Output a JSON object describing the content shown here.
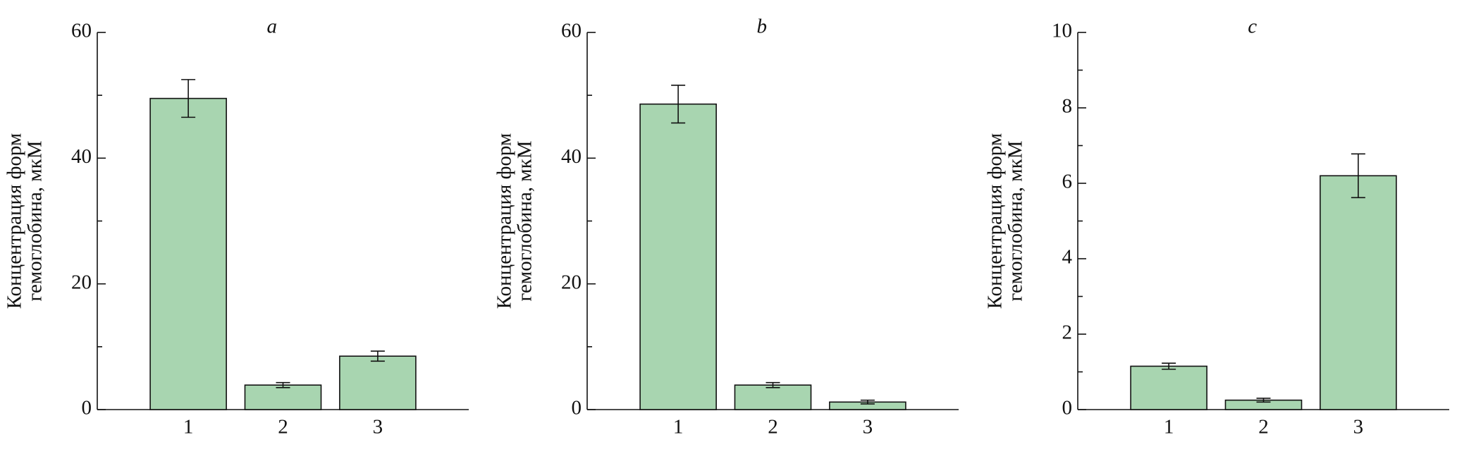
{
  "chart_data": [
    {
      "type": "bar",
      "title": "a",
      "ylabel": [
        "Концентрация форм",
        "гемоглобина, мкМ"
      ],
      "categories": [
        "1",
        "2",
        "3"
      ],
      "values": [
        49.5,
        3.9,
        8.5
      ],
      "errors": [
        3.0,
        0.4,
        0.8
      ],
      "color": "#a8d5b0",
      "ylim": [
        0,
        60
      ],
      "yticks": [
        0,
        20,
        40,
        60
      ],
      "yminorticks": [
        10,
        30,
        50
      ]
    },
    {
      "type": "bar",
      "title": "b",
      "ylabel": [
        "Концентрация форм",
        "гемоглобина, мкМ"
      ],
      "categories": [
        "1",
        "2",
        "3"
      ],
      "values": [
        48.6,
        3.9,
        1.2
      ],
      "errors": [
        3.0,
        0.4,
        0.3
      ],
      "color": "#a8d5b0",
      "ylim": [
        0,
        60
      ],
      "yticks": [
        0,
        20,
        40,
        60
      ],
      "yminorticks": [
        10,
        30,
        50
      ]
    },
    {
      "type": "bar",
      "title": "c",
      "ylabel": [
        "Концентрация форм",
        "гемоглобина, мкМ"
      ],
      "categories": [
        "1",
        "2",
        "3"
      ],
      "values": [
        1.15,
        0.25,
        6.2
      ],
      "errors": [
        0.08,
        0.05,
        0.58
      ],
      "color": "#a8d5b0",
      "ylim": [
        0,
        10
      ],
      "yticks": [
        0,
        2,
        4,
        6,
        8,
        10
      ],
      "yminorticks": [
        1,
        3,
        5,
        7,
        9
      ]
    }
  ]
}
